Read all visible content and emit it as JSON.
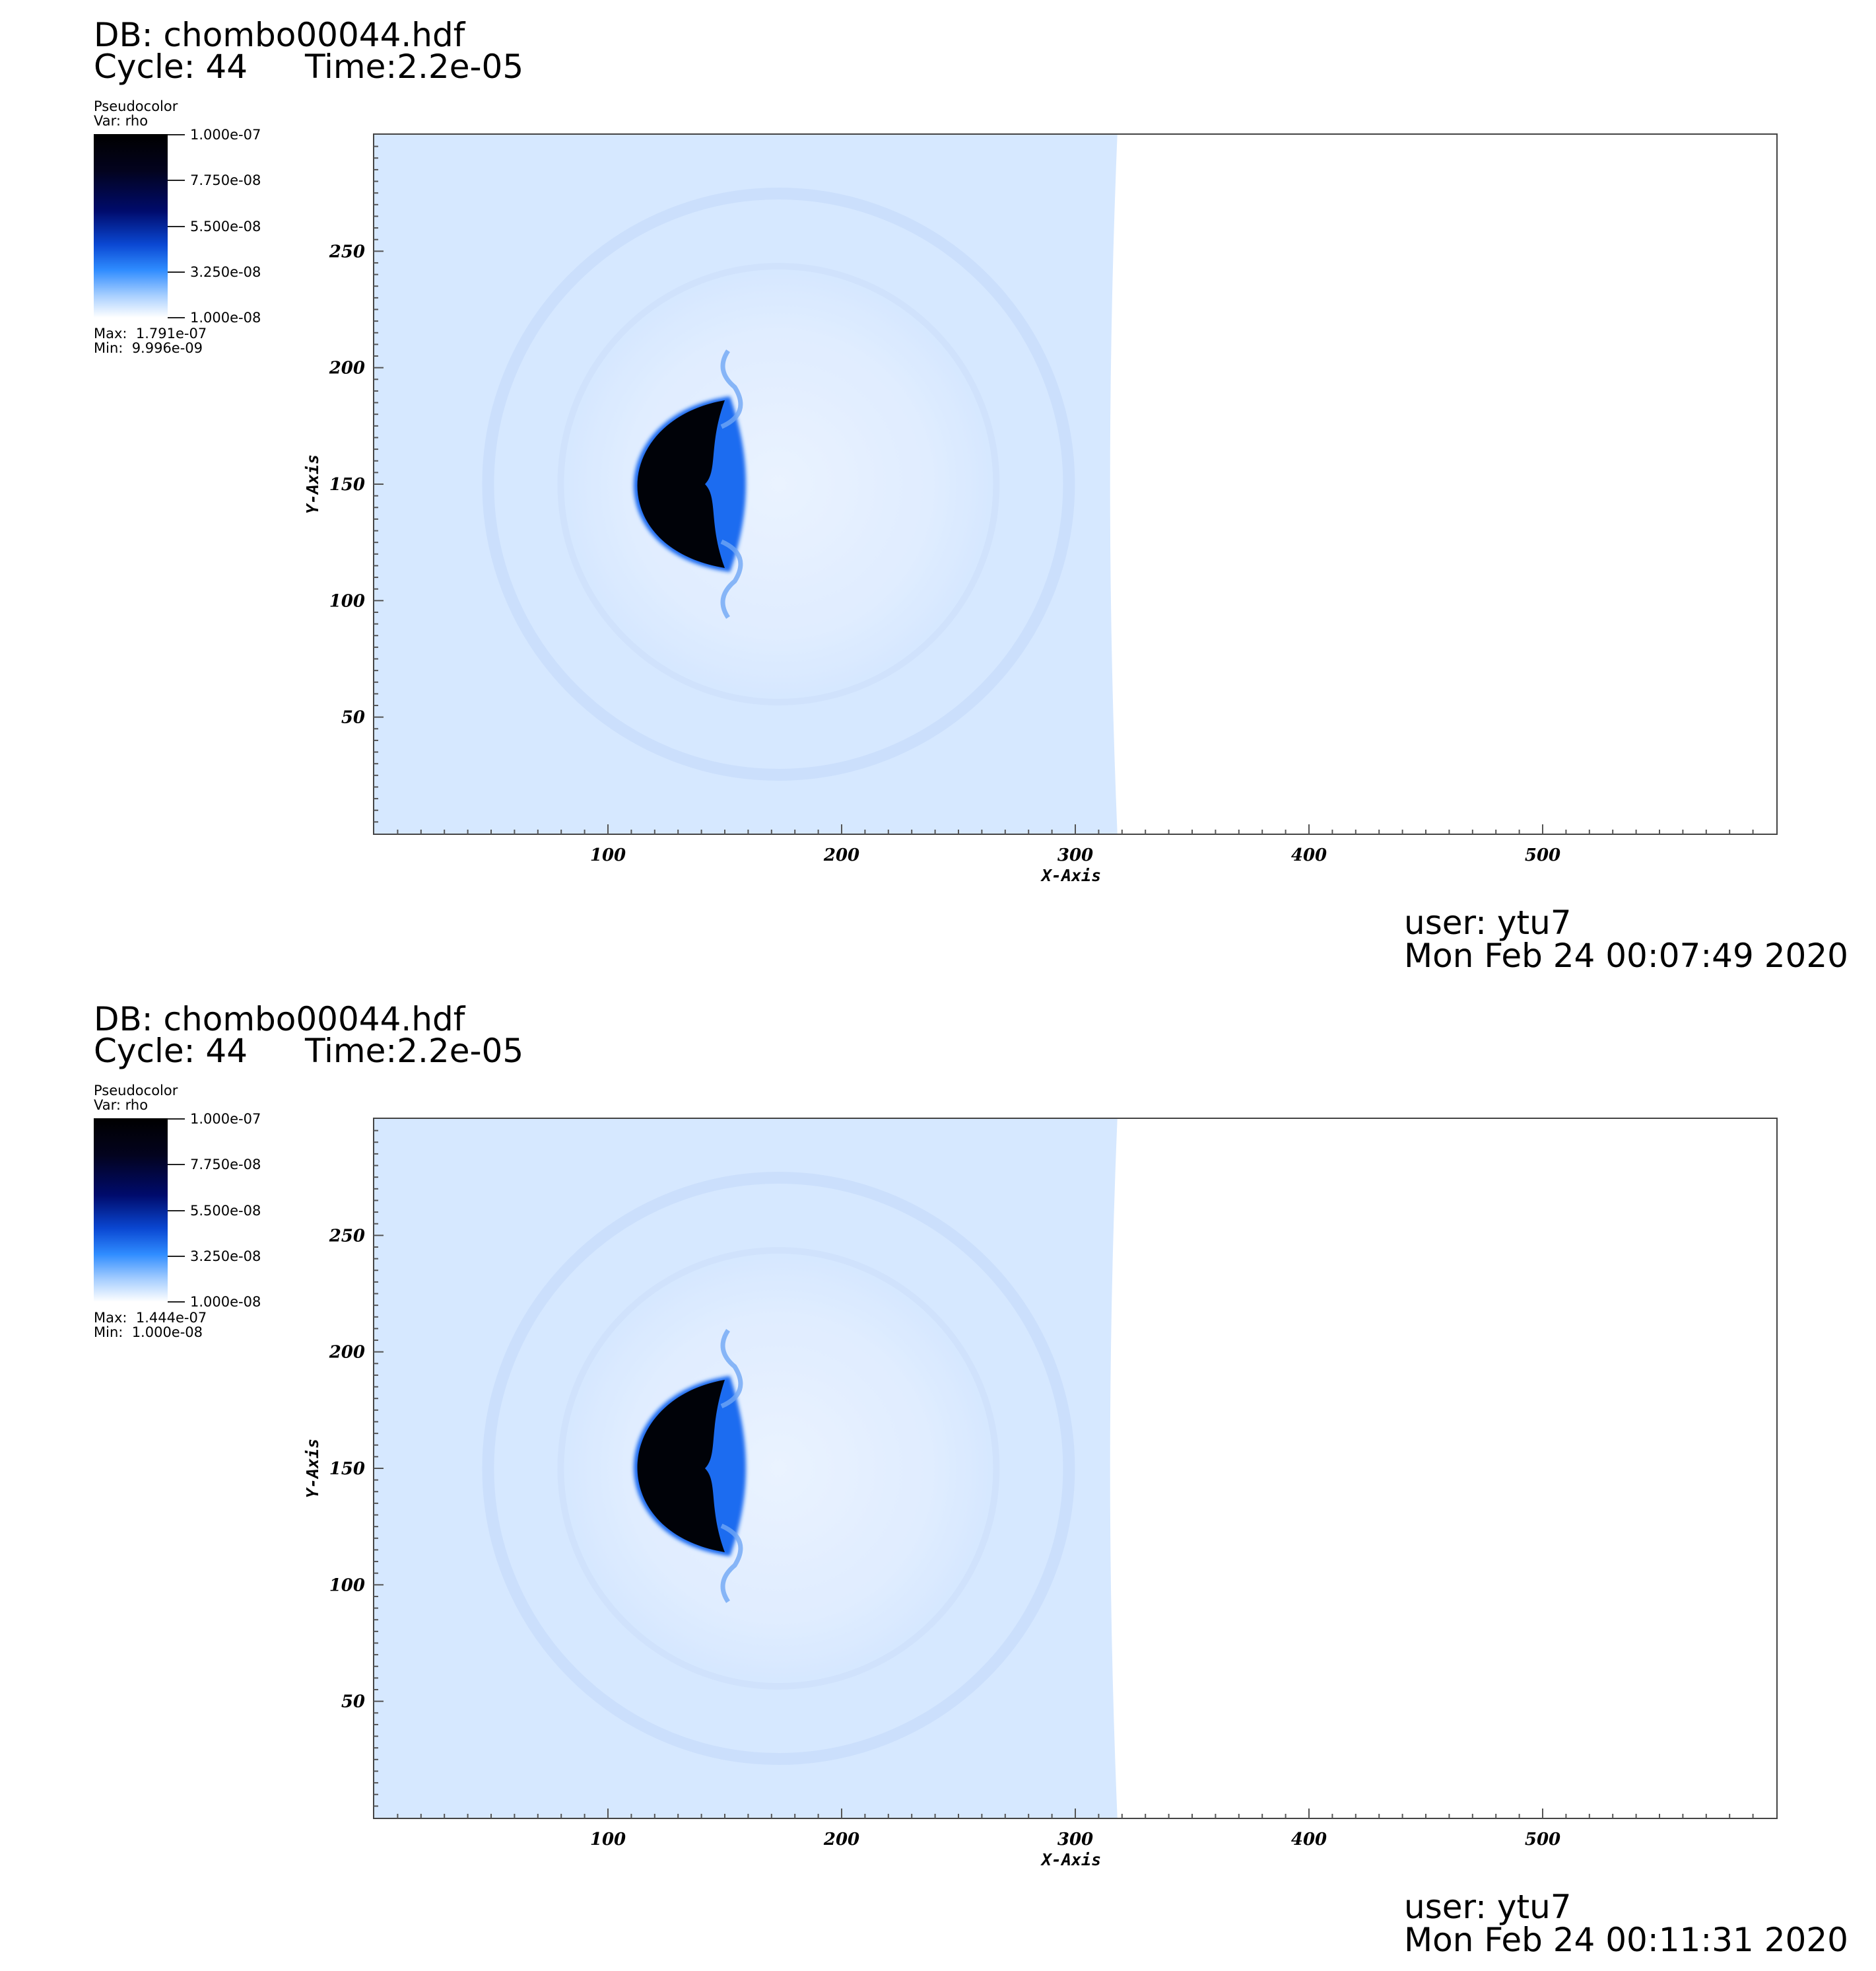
{
  "panels": [
    {
      "db": "DB: chombo00044.hdf",
      "cycle": "Cycle: 44",
      "time": "Time:2.2e-05",
      "legend": {
        "title": "Pseudocolor",
        "var": "Var: rho",
        "ticks": [
          "1.000e-07",
          "7.750e-08",
          "5.500e-08",
          "3.250e-08",
          "1.000e-08"
        ],
        "max": "Max:  1.791e-07",
        "min": "Min:  9.996e-09",
        "colors": [
          "#000000",
          "#000b6c",
          "#0a47d2",
          "#2f8cff",
          "#ffffff"
        ]
      },
      "user": "user: ytu7",
      "date": "Mon Feb 24 00:07:49 2020"
    },
    {
      "db": "DB: chombo00044.hdf",
      "cycle": "Cycle: 44",
      "time": "Time:2.2e-05",
      "legend": {
        "title": "Pseudocolor",
        "var": "Var: rho",
        "ticks": [
          "1.000e-07",
          "7.750e-08",
          "5.500e-08",
          "3.250e-08",
          "1.000e-08"
        ],
        "max": "Max:  1.444e-07",
        "min": "Min:  1.000e-08",
        "colors": [
          "#000000",
          "#000b6c",
          "#0a47d2",
          "#2f8cff",
          "#ffffff"
        ]
      },
      "user": "user: ytu7",
      "date": "Mon Feb 24 00:11:31 2020"
    }
  ],
  "chart_data": [
    {
      "type": "heatmap",
      "variable": "rho",
      "xlabel": "X-Axis",
      "ylabel": "Y-Axis",
      "xlim": [
        0,
        600
      ],
      "ylim": [
        0,
        300
      ],
      "xticks": [
        100,
        200,
        300,
        400,
        500
      ],
      "yticks": [
        50,
        100,
        150,
        200,
        250
      ],
      "filled_x_extent": [
        0,
        318
      ],
      "background_color": "#d6e8ff",
      "dense_region": {
        "x_range": [
          110,
          150
        ],
        "y_range": [
          114,
          186
        ],
        "center": [
          128,
          150
        ]
      },
      "colorbar_range": [
        1e-08,
        1e-07
      ]
    },
    {
      "type": "heatmap",
      "variable": "rho",
      "xlabel": "X-Axis",
      "ylabel": "Y-Axis",
      "xlim": [
        0,
        600
      ],
      "ylim": [
        0,
        300
      ],
      "xticks": [
        100,
        200,
        300,
        400,
        500
      ],
      "yticks": [
        50,
        100,
        150,
        200,
        250
      ],
      "filled_x_extent": [
        0,
        318
      ],
      "background_color": "#d6e8ff",
      "dense_region": {
        "x_range": [
          110,
          150
        ],
        "y_range": [
          114,
          188
        ],
        "center": [
          128,
          150
        ]
      },
      "colorbar_range": [
        1e-08,
        1e-07
      ]
    }
  ]
}
